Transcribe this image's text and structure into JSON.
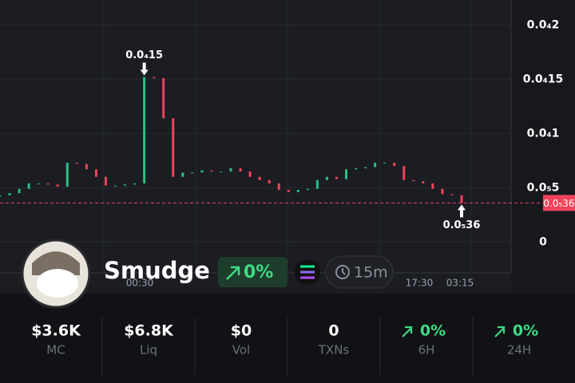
{
  "chart": {
    "ylim": [
      -2.7e-06,
      2.23e-05
    ],
    "yticks": [
      {
        "value": 2e-05,
        "label": "0.0₄2"
      },
      {
        "value": 1.5e-05,
        "label": "0.0₄15"
      },
      {
        "value": 1e-05,
        "label": "0.0₄1"
      },
      {
        "value": 5e-06,
        "label": "0.0₅5"
      },
      0
    ],
    "first_open": 4.2e-06,
    "closes": [
      4.3e-06,
      4.5e-06,
      4.9e-06,
      5.4e-06,
      5.4e-06,
      5.3e-06,
      5.1e-06,
      7.3e-06,
      7.2e-06,
      6.7e-06,
      6e-06,
      5.2e-06,
      5.2e-06,
      5.3e-06,
      5.4e-06,
      1.52e-05,
      1.51e-05,
      1.14e-05,
      6e-06,
      6.4e-06,
      6.4e-06,
      6.6e-06,
      6.5e-06,
      6.5e-06,
      6.8e-06,
      6.5e-06,
      6e-06,
      5.7e-06,
      5.4e-06,
      4.8e-06,
      4.6e-06,
      4.8e-06,
      4.9e-06,
      5.7e-06,
      6e-06,
      5.8e-06,
      6.7e-06,
      6.8e-06,
      6.9e-06,
      7.3e-06,
      7.3e-06,
      7e-06,
      5.7e-06,
      5.6e-06,
      5.4e-06,
      4.9e-06,
      4.4e-06,
      4.3e-06,
      3.6e-06
    ],
    "x_labels": [
      "00:30",
      "17:30",
      "03:15"
    ],
    "high_marker": {
      "value": 1.52e-05,
      "label": "0.0₄15"
    },
    "current_price": {
      "value": 3.6e-06,
      "label": "0.0₅36"
    }
  },
  "token": {
    "name": "Smudge",
    "change": "0%",
    "interval": "15m"
  },
  "stats": [
    {
      "value": "$3.6K",
      "label": "MC"
    },
    {
      "value": "$6.8K",
      "label": "Liq"
    },
    {
      "value": "$0",
      "label": "Vol"
    },
    {
      "value": "0",
      "label": "TXNs"
    },
    {
      "value": "0%",
      "label": "6H",
      "up": true
    },
    {
      "value": "0%",
      "label": "24H",
      "up": true
    }
  ]
}
